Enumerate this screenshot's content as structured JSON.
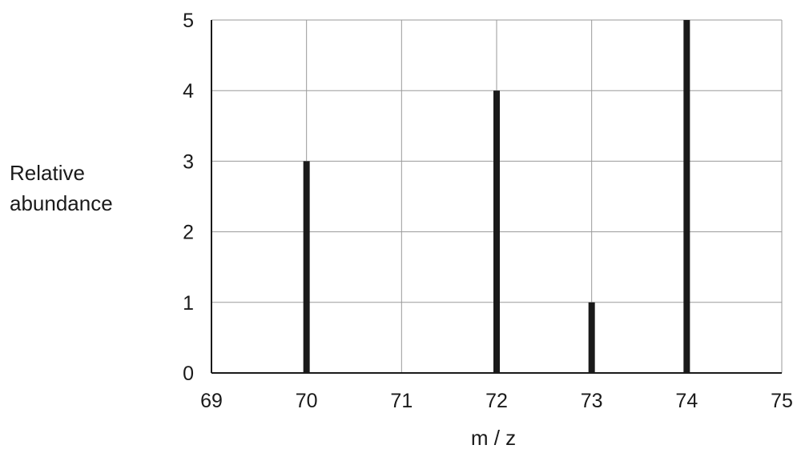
{
  "chart_data": {
    "type": "bar",
    "xlabel": "m / z",
    "ylabel": [
      "Relative",
      "abundance"
    ],
    "xlim": [
      69,
      75
    ],
    "ylim": [
      0,
      5
    ],
    "x_ticks": [
      69,
      70,
      71,
      72,
      73,
      74,
      75
    ],
    "y_ticks": [
      0,
      1,
      2,
      3,
      4,
      5
    ],
    "grid": true,
    "legend": "none",
    "bar_color": "#1a1a1a",
    "points": [
      {
        "x": 70,
        "y": 3
      },
      {
        "x": 72,
        "y": 4
      },
      {
        "x": 73,
        "y": 1
      },
      {
        "x": 74,
        "y": 5
      }
    ]
  }
}
